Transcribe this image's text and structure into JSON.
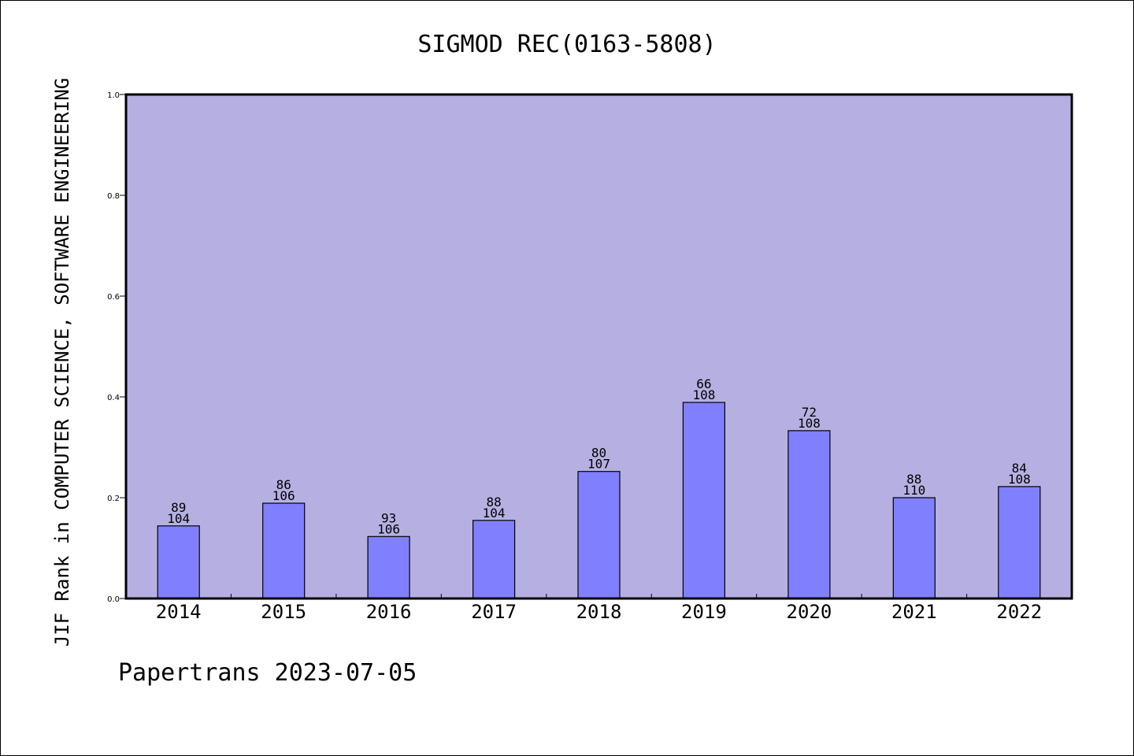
{
  "chart_data": {
    "type": "bar",
    "title": "SIGMOD REC(0163-5808)",
    "ylabel": "JIF Rank in COMPUTER SCIENCE, SOFTWARE ENGINEERING",
    "xlabel": "",
    "categories": [
      "2014",
      "2015",
      "2016",
      "2017",
      "2018",
      "2019",
      "2020",
      "2021",
      "2022"
    ],
    "values": [
      0.144,
      0.189,
      0.123,
      0.155,
      0.252,
      0.389,
      0.333,
      0.2,
      0.222
    ],
    "ranks": [
      "89",
      "86",
      "93",
      "88",
      "80",
      "66",
      "72",
      "88",
      "84"
    ],
    "totals": [
      "104",
      "106",
      "106",
      "104",
      "107",
      "108",
      "108",
      "110",
      "108"
    ],
    "ylim": [
      0,
      1
    ],
    "yticks": [
      "0.0",
      "0.2",
      "0.4",
      "0.6",
      "0.8",
      "1.0"
    ],
    "grid": false,
    "colors": {
      "plot_background": "#b6b0e2",
      "bar_fill": "#8080ff",
      "bar_stroke": "#000000"
    }
  },
  "footer": "Papertrans 2023-07-05"
}
